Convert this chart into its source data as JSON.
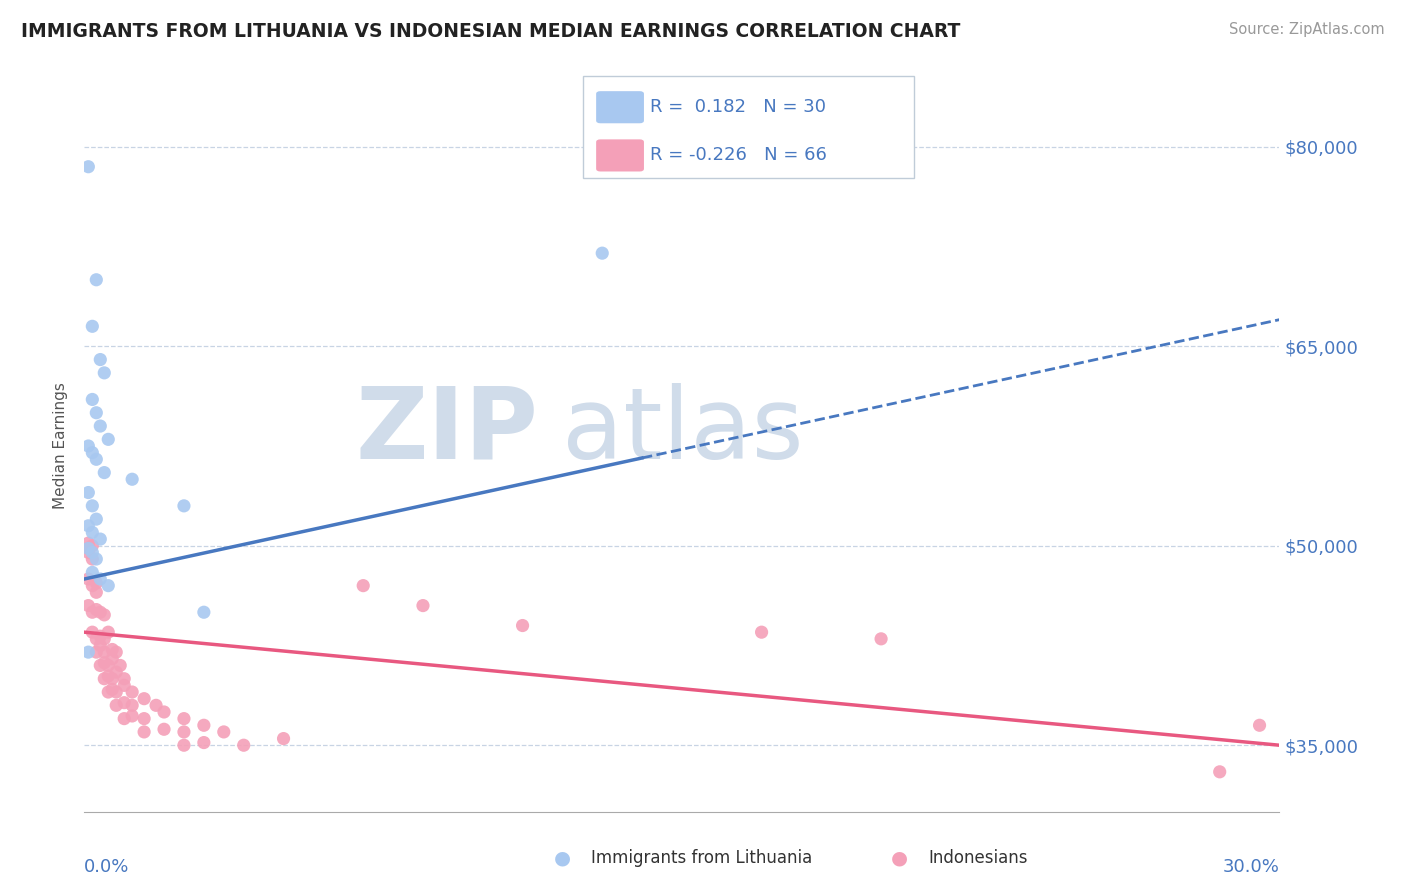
{
  "title": "IMMIGRANTS FROM LITHUANIA VS INDONESIAN MEDIAN EARNINGS CORRELATION CHART",
  "source": "Source: ZipAtlas.com",
  "ylabel": "Median Earnings",
  "yticks": [
    35000,
    50000,
    65000,
    80000
  ],
  "ytick_labels": [
    "$35,000",
    "$50,000",
    "$65,000",
    "$80,000"
  ],
  "xmin": 0.0,
  "xmax": 30.0,
  "ymin": 30000,
  "ymax": 85000,
  "blue_color": "#a8c8f0",
  "pink_color": "#f4a0b8",
  "blue_line_color": "#4878c0",
  "pink_line_color": "#e85880",
  "watermark_color": "#d0dcea",
  "blue_dots": [
    [
      0.1,
      78500
    ],
    [
      0.3,
      70000
    ],
    [
      0.2,
      66500
    ],
    [
      0.4,
      64000
    ],
    [
      0.5,
      63000
    ],
    [
      0.2,
      61000
    ],
    [
      0.3,
      60000
    ],
    [
      0.4,
      59000
    ],
    [
      0.6,
      58000
    ],
    [
      0.1,
      57500
    ],
    [
      0.2,
      57000
    ],
    [
      0.3,
      56500
    ],
    [
      0.5,
      55500
    ],
    [
      0.1,
      54000
    ],
    [
      0.2,
      53000
    ],
    [
      0.3,
      52000
    ],
    [
      0.1,
      51500
    ],
    [
      0.2,
      51000
    ],
    [
      0.4,
      50500
    ],
    [
      0.1,
      49800
    ],
    [
      0.2,
      49500
    ],
    [
      0.3,
      49000
    ],
    [
      0.2,
      48000
    ],
    [
      0.4,
      47500
    ],
    [
      0.6,
      47000
    ],
    [
      1.2,
      55000
    ],
    [
      2.5,
      53000
    ],
    [
      13.0,
      72000
    ],
    [
      0.1,
      42000
    ],
    [
      3.0,
      45000
    ]
  ],
  "pink_dots": [
    [
      0.1,
      50200
    ],
    [
      0.1,
      49800
    ],
    [
      0.1,
      49500
    ],
    [
      0.2,
      50000
    ],
    [
      0.2,
      49000
    ],
    [
      0.1,
      47500
    ],
    [
      0.2,
      47000
    ],
    [
      0.3,
      47200
    ],
    [
      0.3,
      46500
    ],
    [
      0.1,
      45500
    ],
    [
      0.2,
      45000
    ],
    [
      0.3,
      45200
    ],
    [
      0.4,
      45000
    ],
    [
      0.5,
      44800
    ],
    [
      0.2,
      43500
    ],
    [
      0.3,
      43000
    ],
    [
      0.4,
      43200
    ],
    [
      0.5,
      43000
    ],
    [
      0.6,
      43500
    ],
    [
      0.3,
      42000
    ],
    [
      0.4,
      42500
    ],
    [
      0.5,
      42000
    ],
    [
      0.7,
      42200
    ],
    [
      0.8,
      42000
    ],
    [
      0.4,
      41000
    ],
    [
      0.5,
      41200
    ],
    [
      0.6,
      41000
    ],
    [
      0.7,
      41500
    ],
    [
      0.9,
      41000
    ],
    [
      0.5,
      40000
    ],
    [
      0.6,
      40200
    ],
    [
      0.7,
      40000
    ],
    [
      0.8,
      40500
    ],
    [
      1.0,
      40000
    ],
    [
      0.6,
      39000
    ],
    [
      0.7,
      39200
    ],
    [
      0.8,
      39000
    ],
    [
      1.0,
      39500
    ],
    [
      1.2,
      39000
    ],
    [
      0.8,
      38000
    ],
    [
      1.0,
      38200
    ],
    [
      1.2,
      38000
    ],
    [
      1.5,
      38500
    ],
    [
      1.8,
      38000
    ],
    [
      1.0,
      37000
    ],
    [
      1.2,
      37200
    ],
    [
      1.5,
      37000
    ],
    [
      2.0,
      37500
    ],
    [
      2.5,
      37000
    ],
    [
      1.5,
      36000
    ],
    [
      2.0,
      36200
    ],
    [
      2.5,
      36000
    ],
    [
      3.0,
      36500
    ],
    [
      3.5,
      36000
    ],
    [
      2.5,
      35000
    ],
    [
      3.0,
      35200
    ],
    [
      4.0,
      35000
    ],
    [
      5.0,
      35500
    ],
    [
      7.0,
      47000
    ],
    [
      8.5,
      45500
    ],
    [
      11.0,
      44000
    ],
    [
      17.0,
      43500
    ],
    [
      20.0,
      43000
    ],
    [
      28.5,
      33000
    ],
    [
      29.5,
      36500
    ]
  ],
  "blue_line_x0": 0.0,
  "blue_line_y0": 47500,
  "blue_line_x1": 30.0,
  "blue_line_y1": 67000,
  "blue_solid_end": 14.0,
  "pink_line_x0": 0.0,
  "pink_line_y0": 43500,
  "pink_line_x1": 30.0,
  "pink_line_y1": 35000
}
